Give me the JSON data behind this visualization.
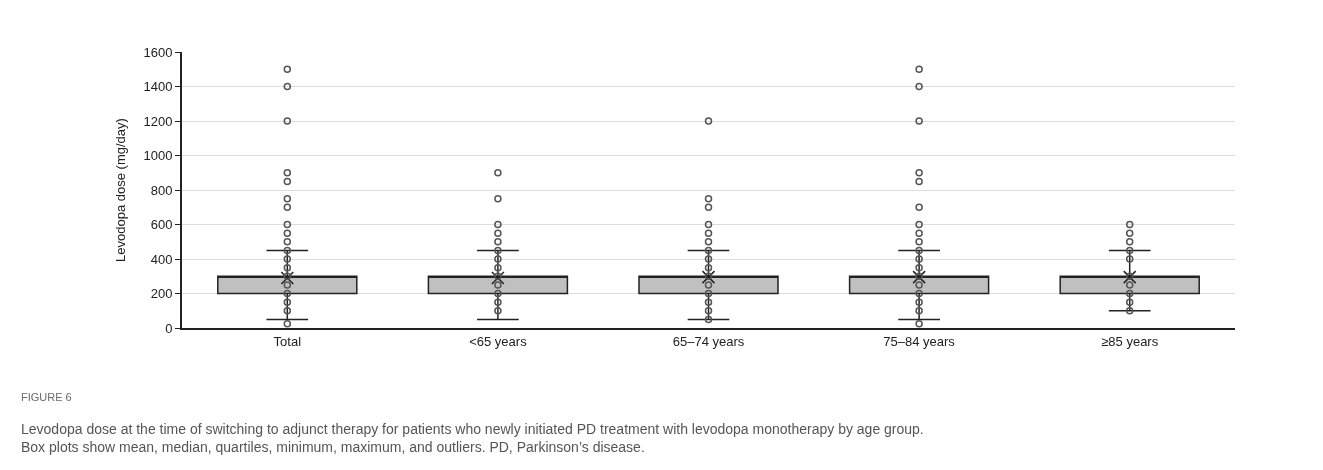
{
  "chart_data": {
    "type": "box",
    "ylabel": "Levodopa dose (mg/day)",
    "categories": [
      "Total",
      "<65 years",
      "65–74 years",
      "75–84 years",
      "≥85 years"
    ],
    "ylim": [
      0,
      1600
    ],
    "yticks": [
      0,
      200,
      400,
      600,
      800,
      1000,
      1200,
      1400,
      1600
    ],
    "grid": "y",
    "color": "#c0c0c0",
    "boxes": [
      {
        "low": 50,
        "q1": 200,
        "median": 300,
        "q3": 300,
        "high": 450,
        "mean": 290
      },
      {
        "low": 50,
        "q1": 200,
        "median": 300,
        "q3": 300,
        "high": 450,
        "mean": 290
      },
      {
        "low": 50,
        "q1": 200,
        "median": 300,
        "q3": 300,
        "high": 450,
        "mean": 295
      },
      {
        "low": 50,
        "q1": 200,
        "median": 300,
        "q3": 300,
        "high": 450,
        "mean": 295
      },
      {
        "low": 100,
        "q1": 200,
        "median": 300,
        "q3": 300,
        "high": 450,
        "mean": 295
      }
    ],
    "series": [
      {
        "type": "scatter",
        "color": "#555555",
        "marker": "circle",
        "x": [
          "Total",
          "Total",
          "Total",
          "Total",
          "Total",
          "Total",
          "Total",
          "Total",
          "Total",
          "Total",
          "Total",
          "Total",
          "Total",
          "Total",
          "Total",
          "Total",
          "Total",
          "Total",
          "Total",
          "<65 years",
          "<65 years",
          "<65 years",
          "<65 years",
          "<65 years",
          "<65 years",
          "<65 years",
          "<65 years",
          "<65 years",
          "<65 years",
          "<65 years",
          "<65 years",
          "<65 years",
          "65–74 years",
          "65–74 years",
          "65–74 years",
          "65–74 years",
          "65–74 years",
          "65–74 years",
          "65–74 years",
          "65–74 years",
          "65–74 years",
          "65–74 years",
          "65–74 years",
          "65–74 years",
          "65–74 years",
          "65–74 years",
          "65–74 years",
          "75–84 years",
          "75–84 years",
          "75–84 years",
          "75–84 years",
          "75–84 years",
          "75–84 years",
          "75–84 years",
          "75–84 years",
          "75–84 years",
          "75–84 years",
          "75–84 years",
          "75–84 years",
          "75–84 years",
          "75–84 years",
          "75–84 years",
          "75–84 years",
          "75–84 years",
          "75–84 years",
          "≥85 years",
          "≥85 years",
          "≥85 years",
          "≥85 years",
          "≥85 years",
          "≥85 years",
          "≥85 years",
          "≥85 years",
          "≥85 years",
          "≥85 years"
        ],
        "values": [
          25,
          100,
          150,
          200,
          250,
          300,
          350,
          400,
          450,
          500,
          550,
          600,
          700,
          750,
          850,
          900,
          1200,
          1400,
          1500,
          100,
          150,
          200,
          250,
          300,
          350,
          400,
          450,
          500,
          550,
          600,
          750,
          900,
          50,
          100,
          150,
          200,
          250,
          300,
          350,
          400,
          450,
          500,
          550,
          600,
          700,
          750,
          1200,
          25,
          100,
          150,
          200,
          250,
          300,
          350,
          400,
          450,
          500,
          550,
          600,
          700,
          850,
          900,
          1200,
          1400,
          1500,
          100,
          150,
          200,
          250,
          300,
          400,
          450,
          500,
          550,
          600
        ]
      }
    ],
    "annotations": [
      "FIGURE 6",
      "Levodopa dose at the time of switching to adjunct therapy for patients who newly initiated PD treatment with levodopa monotherapy by age group.\nBox plots show mean, median, quartiles, minimum, maximum, and outliers. PD, Parkinson’s disease."
    ]
  }
}
